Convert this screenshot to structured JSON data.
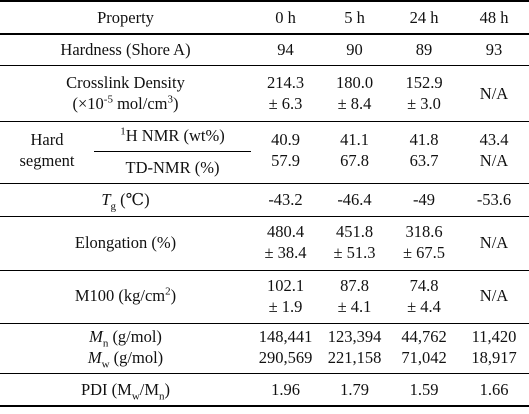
{
  "headers": {
    "property": "Property",
    "cols": [
      "0 h",
      "5 h",
      "24 h",
      "48 h"
    ]
  },
  "hardness": {
    "label": "Hardness (Shore A)",
    "values": [
      "94",
      "90",
      "89",
      "93"
    ]
  },
  "crosslink": {
    "label_line1": "Crosslink Density",
    "label_line2_pre": "(×10",
    "label_line2_exp": "-5",
    "label_line2_mid": " mol/cm",
    "label_line2_exp2": "3",
    "label_line2_post": ")",
    "means": [
      "214.3",
      "180.0",
      "152.9"
    ],
    "errors": [
      "± 6.3",
      "± 8.4",
      "± 3.0"
    ],
    "na": "N/A"
  },
  "hard_segment": {
    "label_line1": "Hard",
    "label_line2": "segment",
    "nmr_sup": "1",
    "nmr_label": "H NMR (wt%)",
    "nmr_values": [
      "40.9",
      "41.1",
      "41.8",
      "43.4"
    ],
    "td_label": "TD-NMR (%)",
    "td_values": [
      "57.9",
      "67.8",
      "63.7",
      "N/A"
    ]
  },
  "tg": {
    "symbol": "T",
    "sub": "g",
    "unit": " (℃)",
    "values": [
      "-43.2",
      "-46.4",
      "-49",
      "-53.6"
    ]
  },
  "elongation": {
    "label": "Elongation (%)",
    "means": [
      "480.4",
      "451.8",
      "318.6"
    ],
    "errors": [
      "± 38.4",
      "± 51.3",
      "± 67.5"
    ],
    "na": "N/A"
  },
  "m100": {
    "label_pre": "M100 (kg/cm",
    "label_exp": "2",
    "label_post": ")",
    "means": [
      "102.1",
      "87.8",
      "74.8"
    ],
    "errors": [
      "± 1.9",
      "± 4.1",
      "± 4.4"
    ],
    "na": "N/A"
  },
  "mn": {
    "symbol": "M",
    "sub": "n",
    "unit": " (g/mol)",
    "values": [
      "148,441",
      "123,394",
      "44,762",
      "11,420"
    ]
  },
  "mw": {
    "symbol": "M",
    "sub": "w",
    "unit": " (g/mol)",
    "values": [
      "290,569",
      "221,158",
      "71,042",
      "18,917"
    ]
  },
  "pdi": {
    "label_pre": "PDI (M",
    "label_sub1": "w",
    "label_mid": "/M",
    "label_sub2": "n",
    "label_post": ")",
    "values": [
      "1.96",
      "1.79",
      "1.59",
      "1.66"
    ]
  }
}
